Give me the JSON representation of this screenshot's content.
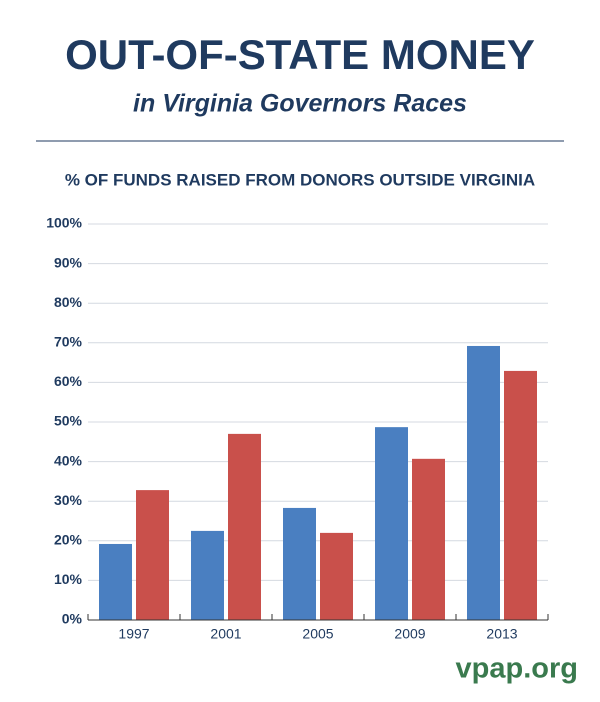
{
  "chart_data": {
    "type": "bar",
    "title": "OUT-OF-STATE MONEY",
    "subtitle": "in Virginia Governors Races",
    "ylabel": "% OF FUNDS RAISED FROM DONORS OUTSIDE VIRGINIA",
    "source": "vpap.org",
    "categories": [
      "1997",
      "2001",
      "2005",
      "2009",
      "2013"
    ],
    "series": [
      {
        "color": "#4a7fc1",
        "values": [
          19.2,
          22.5,
          28.3,
          48.7,
          69.2
        ]
      },
      {
        "color": "#c9504b",
        "values": [
          32.8,
          47,
          22,
          40.7,
          62.9
        ]
      }
    ],
    "ylim": [
      0,
      100
    ],
    "yticks": [
      {
        "value": 0,
        "label": "0%"
      },
      {
        "value": 10,
        "label": "10%"
      },
      {
        "value": 20,
        "label": "20%"
      },
      {
        "value": 30,
        "label": "30%"
      },
      {
        "value": 40,
        "label": "40%"
      },
      {
        "value": 50,
        "label": "50%"
      },
      {
        "value": 60,
        "label": "60%"
      },
      {
        "value": 70,
        "label": "70%"
      },
      {
        "value": 80,
        "label": "80%"
      },
      {
        "value": 90,
        "label": "90%"
      },
      {
        "value": 100,
        "label": "100%"
      }
    ],
    "grid": true
  }
}
